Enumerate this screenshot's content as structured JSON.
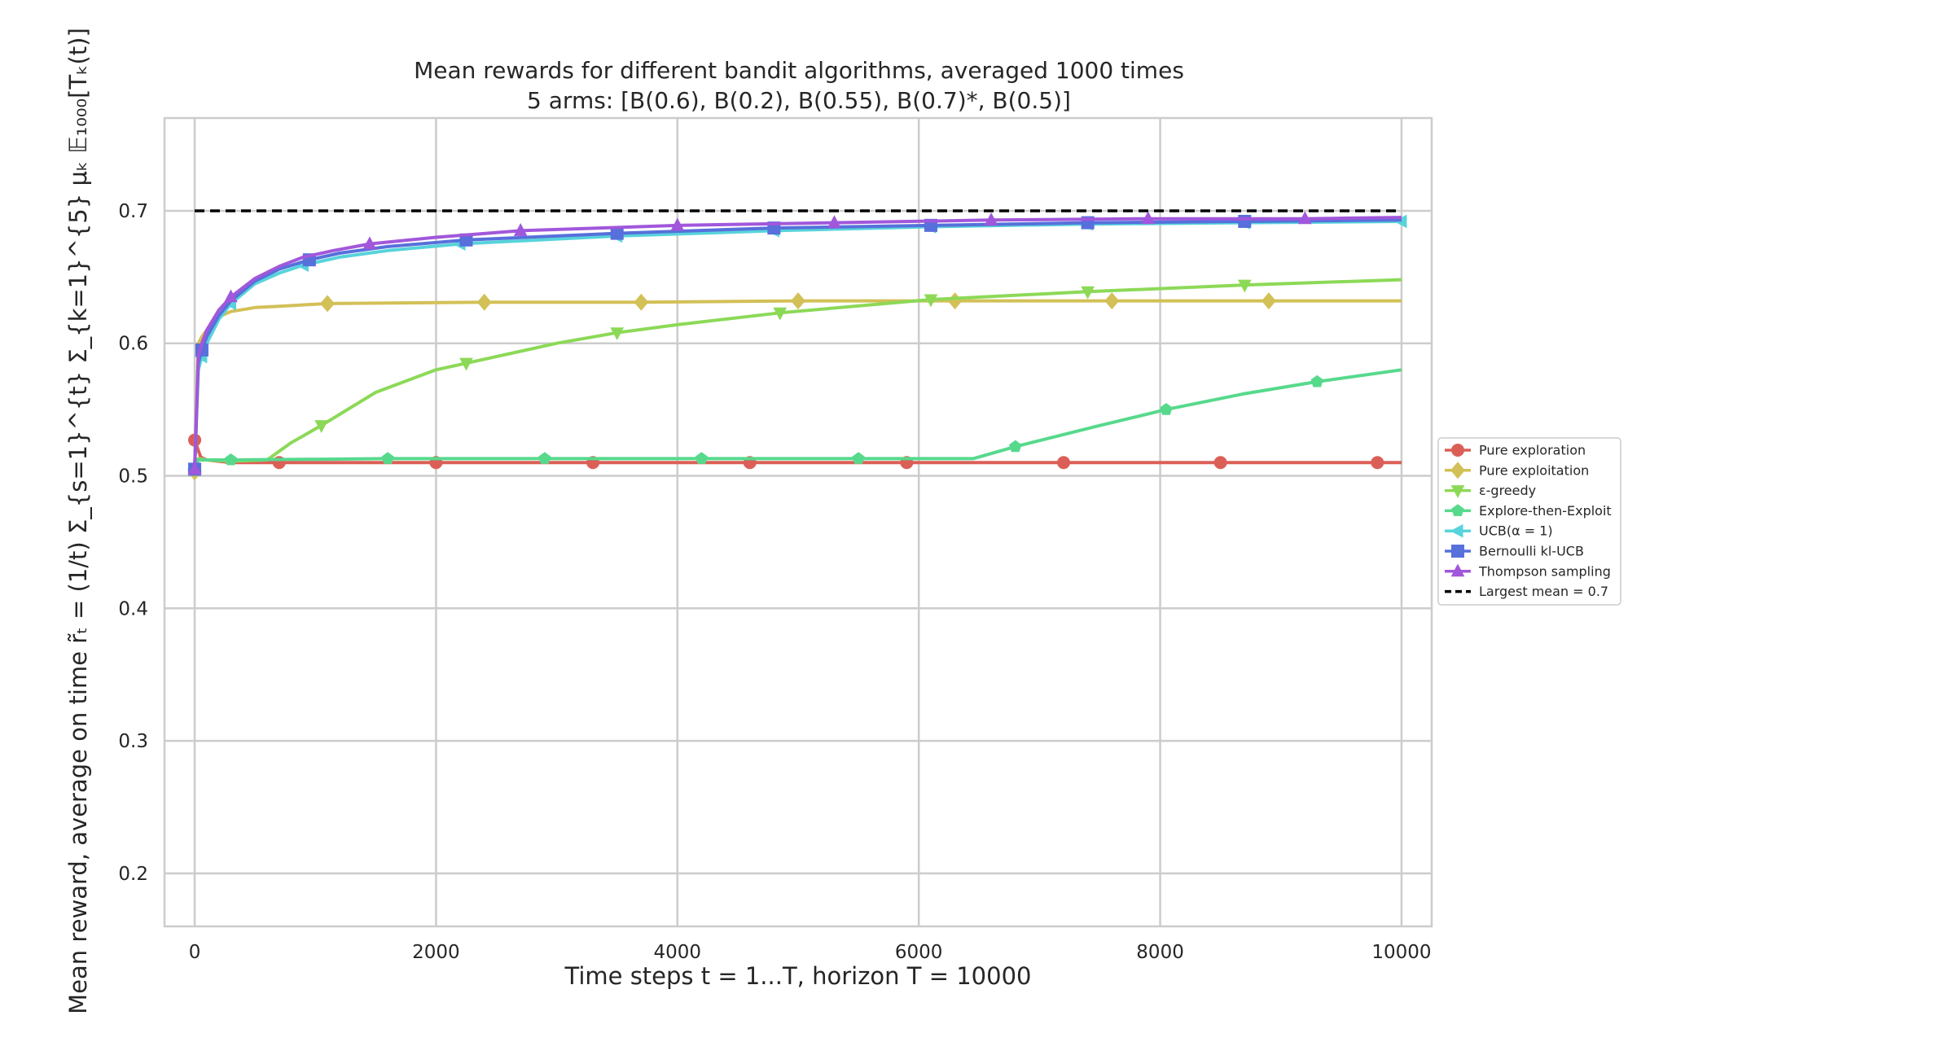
{
  "chart_data": {
    "type": "line",
    "title": "Mean rewards for different bandit algorithms, averaged 1000 times",
    "subtitle": "5 arms: [B(0.6), B(0.2), B(0.55), B(0.7)*, B(0.5)]",
    "xlabel": "Time steps t = 1...T, horizon T = 10000",
    "ylabel": "Mean reward, average on time r̃ₜ = (1/t) Σ_{s=1}^{t} Σ_{k=1}^{5} μₖ 𝔼₁₀₀₀[Tₖ(t)]",
    "xlim": [
      -250,
      10250
    ],
    "ylim": [
      0.16,
      0.77
    ],
    "xticks": [
      0,
      2000,
      4000,
      6000,
      8000,
      10000
    ],
    "yticks": [
      0.2,
      0.3,
      0.4,
      0.5,
      0.6,
      0.7
    ],
    "grid": true,
    "legend_position": "center-right, outside plot",
    "series": [
      {
        "name": "Pure exploration",
        "color": "#db5f57",
        "marker": "circle",
        "x": [
          0,
          50,
          100,
          200,
          300,
          500,
          700,
          1000,
          2000,
          3300,
          4600,
          5900,
          7200,
          8500,
          9800,
          10000
        ],
        "y": [
          0.527,
          0.514,
          0.512,
          0.511,
          0.51,
          0.51,
          0.51,
          0.51,
          0.51,
          0.51,
          0.51,
          0.51,
          0.51,
          0.51,
          0.51,
          0.51
        ],
        "markers_x": [
          0,
          700,
          2000,
          3300,
          4600,
          5900,
          7200,
          8500,
          9800
        ]
      },
      {
        "name": "Pure exploitation",
        "color": "#d3c057",
        "marker": "diamond",
        "x": [
          0,
          30,
          60,
          100,
          200,
          300,
          500,
          700,
          1100,
          2400,
          3700,
          5000,
          6300,
          7600,
          8900,
          10000
        ],
        "y": [
          0.503,
          0.6,
          0.605,
          0.61,
          0.62,
          0.624,
          0.627,
          0.628,
          0.63,
          0.631,
          0.631,
          0.632,
          0.632,
          0.632,
          0.632,
          0.632
        ],
        "markers_x": [
          0,
          1100,
          2400,
          3700,
          5000,
          6300,
          7600,
          8900
        ]
      },
      {
        "name": "ε-greedy",
        "color": "#8cd957",
        "marker": "triangle-down",
        "x": [
          0,
          30,
          100,
          300,
          600,
          800,
          1050,
          1500,
          2000,
          2250,
          3000,
          3500,
          4000,
          4850,
          6100,
          7400,
          8700,
          10000
        ],
        "y": [
          0.505,
          0.513,
          0.512,
          0.511,
          0.512,
          0.525,
          0.538,
          0.563,
          0.58,
          0.585,
          0.6,
          0.608,
          0.614,
          0.623,
          0.633,
          0.639,
          0.644,
          0.648
        ],
        "markers_x": [
          0,
          1050,
          2250,
          3500,
          4850,
          6100,
          7400,
          8700
        ]
      },
      {
        "name": "Explore-then-Exploit",
        "color": "#57d98c",
        "marker": "pentagon",
        "x": [
          0,
          30,
          300,
          1600,
          2900,
          4200,
          5500,
          6450,
          6800,
          7500,
          8050,
          8700,
          9300,
          10000
        ],
        "y": [
          0.505,
          0.512,
          0.512,
          0.513,
          0.513,
          0.513,
          0.513,
          0.513,
          0.522,
          0.538,
          0.55,
          0.562,
          0.571,
          0.58
        ],
        "markers_x": [
          0,
          300,
          1600,
          2900,
          4200,
          5500,
          6800,
          8050,
          9300
        ]
      },
      {
        "name": "UCB(α = 1)",
        "color": "#57d3db",
        "marker": "triangle-left",
        "x": [
          0,
          30,
          60,
          100,
          200,
          300,
          500,
          700,
          900,
          1200,
          1600,
          2200,
          3500,
          4800,
          6100,
          7400,
          8700,
          10000
        ],
        "y": [
          0.505,
          0.58,
          0.59,
          0.6,
          0.618,
          0.63,
          0.645,
          0.653,
          0.659,
          0.665,
          0.67,
          0.675,
          0.681,
          0.685,
          0.688,
          0.69,
          0.691,
          0.692
        ],
        "markers_x": [
          0,
          60,
          300,
          900,
          2200,
          3500,
          4800,
          6100,
          7400,
          8700,
          10000
        ]
      },
      {
        "name": "Bernoulli kl-UCB",
        "color": "#5770db",
        "marker": "square",
        "x": [
          0,
          30,
          60,
          100,
          200,
          300,
          500,
          700,
          950,
          1200,
          1600,
          2250,
          3500,
          4800,
          6100,
          7400,
          8700,
          10000
        ],
        "y": [
          0.505,
          0.585,
          0.595,
          0.605,
          0.621,
          0.632,
          0.647,
          0.656,
          0.663,
          0.668,
          0.673,
          0.678,
          0.683,
          0.687,
          0.689,
          0.691,
          0.692,
          0.693
        ],
        "markers_x": [
          0,
          60,
          950,
          2250,
          3500,
          4800,
          6100,
          7400,
          8700
        ]
      },
      {
        "name": "Thompson sampling",
        "color": "#a157db",
        "marker": "triangle-up",
        "x": [
          0,
          30,
          60,
          100,
          200,
          300,
          500,
          700,
          900,
          1150,
          1450,
          2000,
          2700,
          4000,
          5300,
          6600,
          7900,
          9200,
          10000
        ],
        "y": [
          0.505,
          0.59,
          0.6,
          0.61,
          0.625,
          0.635,
          0.649,
          0.658,
          0.665,
          0.67,
          0.675,
          0.68,
          0.685,
          0.689,
          0.691,
          0.693,
          0.694,
          0.694,
          0.695
        ],
        "markers_x": [
          0,
          300,
          1450,
          2700,
          4000,
          5300,
          6600,
          7900,
          9200
        ]
      },
      {
        "name": "Largest mean = 0.7",
        "color": "#000000",
        "marker": "none",
        "dashed": true,
        "x": [
          0,
          10000
        ],
        "y": [
          0.7,
          0.7
        ]
      }
    ]
  }
}
